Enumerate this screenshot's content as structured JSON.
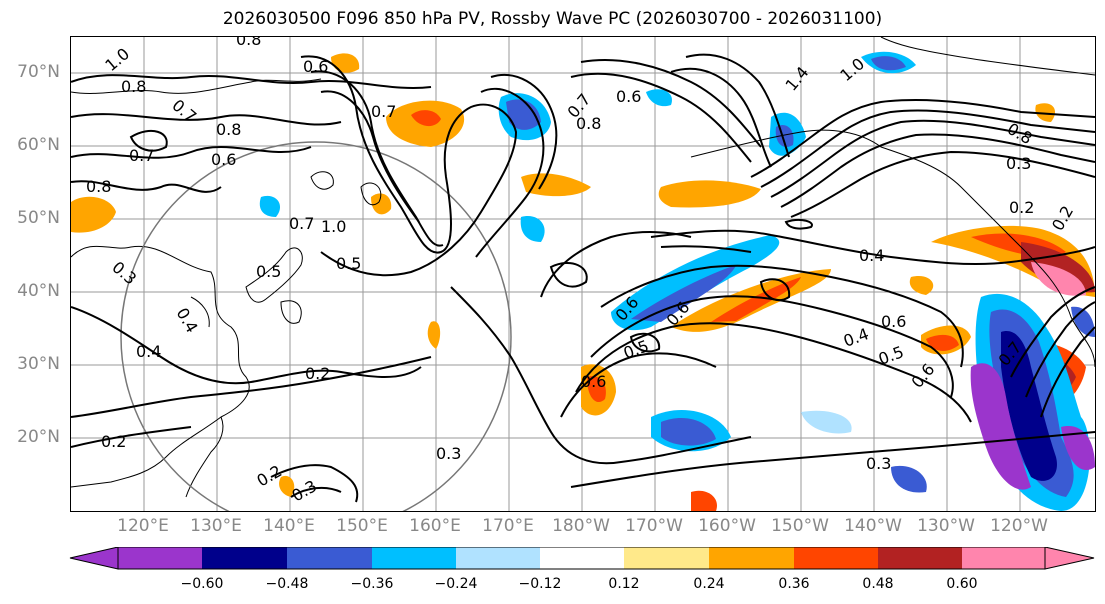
{
  "title": "2026030500 F096 850 hPa PV, Rossby Wave PC (2026030700 - 2026031100)",
  "lat_labels": [
    "70°N",
    "60°N",
    "50°N",
    "40°N",
    "30°N",
    "20°N"
  ],
  "lon_labels": [
    "120°E",
    "130°E",
    "140°E",
    "150°E",
    "160°E",
    "170°E",
    "180°W",
    "170°W",
    "160°W",
    "150°W",
    "140°W",
    "130°W",
    "120°W"
  ],
  "colorbar": {
    "ticks": [
      "−0.60",
      "−0.48",
      "−0.36",
      "−0.24",
      "−0.12",
      "0.12",
      "0.24",
      "0.36",
      "0.48",
      "0.60"
    ],
    "colors": [
      "#9b35cc",
      "#00008b",
      "#3a5bd3",
      "#00bfff",
      "#b0e2ff",
      "#ffffff",
      "#ffe98a",
      "#ffa500",
      "#ff4500",
      "#b22222",
      "#ff85ad"
    ]
  },
  "contour_labels": [
    "1.0",
    "0.8",
    "0.8",
    "0.7",
    "0.8",
    "0.6",
    "0.7",
    "0.6",
    "0.8",
    "0.7",
    "0.5",
    "0.3",
    "0.4",
    "0.7",
    "1.0",
    "0.5",
    "0.4",
    "0.2",
    "0.2",
    "0.2",
    "0.3",
    "0.3",
    "0.7",
    "0.8",
    "0.6",
    "1.4",
    "1.0",
    "0.8",
    "0.3",
    "0.2",
    "0.2",
    "0.4",
    "0.6",
    "0.6",
    "0.6",
    "0.5",
    "0.4",
    "0.5",
    "0.6",
    "0.7",
    "0.6",
    "0.3"
  ]
}
